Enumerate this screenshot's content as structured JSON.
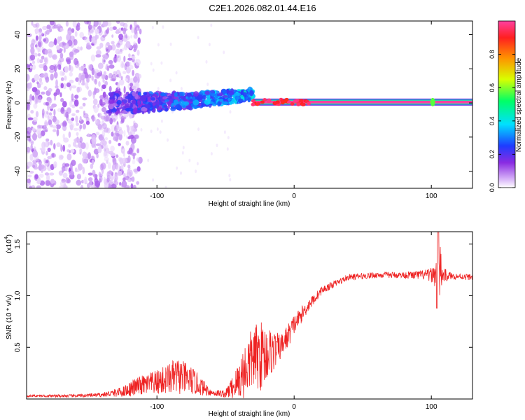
{
  "title": "C2E1.2026.082.01.44.E16",
  "chart_data": [
    {
      "type": "heatmap",
      "name": "spectrogram",
      "xlabel": "Height of straight line (km)",
      "ylabel": "Frequency (Hz)",
      "xlim": [
        -195,
        130
      ],
      "ylim": [
        -50,
        48
      ],
      "xticks": [
        -100,
        0,
        100
      ],
      "xtick_labels": [
        "-100",
        "0",
        "100"
      ],
      "yticks": [
        -40,
        -20,
        0,
        20,
        40
      ],
      "ytick_labels": [
        "-40",
        "-20",
        "0",
        "20",
        "40"
      ],
      "colorbar": {
        "label": "Normalized spectral amplitude",
        "range": [
          0,
          1
        ],
        "ticks": [
          0,
          0.2,
          0.4,
          0.6,
          0.8
        ],
        "tick_labels": [
          "0.0",
          "0.2",
          "0.4",
          "0.6",
          "0.8"
        ],
        "colors": [
          "#ffffff",
          "#d8b4f8",
          "#8a2be2",
          "#1e3cff",
          "#00e0ff",
          "#00ff66",
          "#d8ff00",
          "#ff9000",
          "#ff2020",
          "#ff40a0"
        ]
      },
      "features": {
        "noise_region_km": [
          -195,
          -120
        ],
        "transition_band_km": [
          -135,
          -30
        ],
        "transition_freq_hz": [
          0,
          5
        ],
        "carrier_line_km": [
          -30,
          130
        ],
        "carrier_freq_hz": 0.5,
        "carrier_amplitude": 1.0,
        "spot_km": 101
      }
    },
    {
      "type": "line",
      "name": "snr",
      "xlabel": "Height of straight line (km)",
      "ylabel": "SNR (10 * v/v)",
      "scale_label": "(x10",
      "scale_exponent": "4",
      "xlim": [
        -195,
        130
      ],
      "ylim": [
        0,
        1.62
      ],
      "xticks": [
        -100,
        0,
        100
      ],
      "xtick_labels": [
        "-100",
        "0",
        "100"
      ],
      "yticks": [
        0.5,
        1.0,
        1.5
      ],
      "ytick_labels": [
        "0.5",
        "1.0",
        "1.5"
      ],
      "color": "#ee2222",
      "series": [
        {
          "name": "SNR",
          "x": [
            -195,
            -160,
            -140,
            -125,
            -115,
            -100,
            -85,
            -75,
            -60,
            -50,
            -42,
            -35,
            -30,
            -25,
            -18,
            -10,
            -5,
            0,
            10,
            20,
            30,
            40,
            60,
            80,
            95,
            100,
            103,
            105,
            108,
            115,
            130
          ],
          "y": [
            0.03,
            0.03,
            0.04,
            0.07,
            0.12,
            0.16,
            0.22,
            0.18,
            0.06,
            0.05,
            0.15,
            0.3,
            0.4,
            0.42,
            0.45,
            0.5,
            0.6,
            0.72,
            0.9,
            1.05,
            1.12,
            1.18,
            1.2,
            1.2,
            1.2,
            1.2,
            1.2,
            1.25,
            1.2,
            1.19,
            1.18
          ],
          "noise": [
            0.01,
            0.015,
            0.02,
            0.05,
            0.09,
            0.12,
            0.18,
            0.14,
            0.03,
            0.04,
            0.16,
            0.3,
            0.3,
            0.35,
            0.25,
            0.12,
            0.12,
            0.1,
            0.06,
            0.04,
            0.03,
            0.03,
            0.03,
            0.03,
            0.05,
            0.07,
            0.12,
            0.45,
            0.08,
            0.03,
            0.03
          ]
        }
      ]
    }
  ]
}
